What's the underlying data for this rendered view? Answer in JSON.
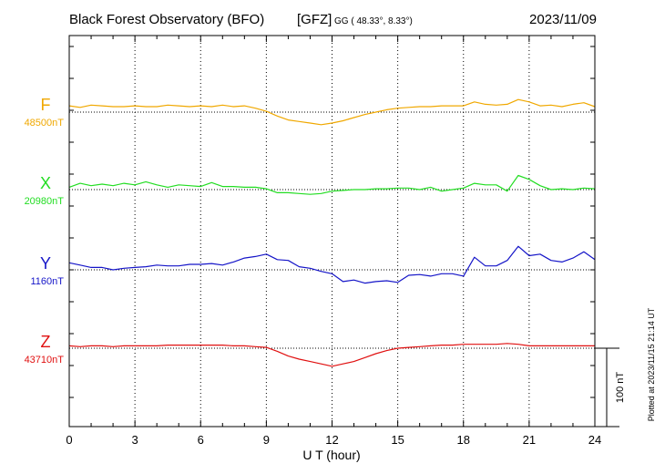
{
  "header": {
    "title": "Black Forest Observatory (BFO)",
    "gfz": "[GFZ]",
    "coords": "GG ( 48.33°,   8.33°)",
    "date": "2023/11/09"
  },
  "footer_note": "Plotted at 2023/11/15 21:14 UT",
  "scale_label": "100 nT",
  "chart_data": {
    "type": "line",
    "title": "Black Forest Observatory (BFO)",
    "xlabel": "U T (hour)",
    "xlim": [
      0,
      24
    ],
    "xticks": [
      0,
      3,
      6,
      9,
      12,
      15,
      18,
      21,
      24
    ],
    "xtick_labels": [
      "0",
      "3",
      "6",
      "9",
      "12",
      "15",
      "18",
      "21",
      "24"
    ],
    "scale_bar_nT": 100,
    "grid": true,
    "series": [
      {
        "name": "F",
        "baseline_label": "48500nT",
        "color": "#f0a800",
        "baseline": 48500,
        "x": [
          0,
          0.5,
          1,
          1.5,
          2,
          2.5,
          3,
          3.5,
          4,
          4.5,
          5,
          5.5,
          6,
          6.5,
          7,
          7.5,
          8,
          8.5,
          9,
          9.5,
          10,
          10.5,
          11,
          11.5,
          12,
          12.5,
          13,
          13.5,
          14,
          14.5,
          15,
          15.5,
          16,
          16.5,
          17,
          17.5,
          18,
          18.5,
          19,
          19.5,
          20,
          20.5,
          21,
          21.5,
          22,
          22.5,
          23,
          23.5,
          24
        ],
        "values": [
          48508,
          48506,
          48509,
          48508,
          48507,
          48507,
          48508,
          48507,
          48507,
          48509,
          48508,
          48507,
          48508,
          48507,
          48509,
          48507,
          48508,
          48505,
          48501,
          48495,
          48490,
          48488,
          48486,
          48484,
          48486,
          48489,
          48493,
          48497,
          48500,
          48503,
          48505,
          48506,
          48507,
          48507,
          48508,
          48508,
          48508,
          48513,
          48510,
          48509,
          48510,
          48516,
          48513,
          48508,
          48509,
          48507,
          48510,
          48512,
          48507
        ]
      },
      {
        "name": "X",
        "baseline_label": "20980nT",
        "color": "#22dd22",
        "baseline": 20980,
        "x": [
          0,
          0.5,
          1,
          1.5,
          2,
          2.5,
          3,
          3.5,
          4,
          4.5,
          5,
          5.5,
          6,
          6.5,
          7,
          7.5,
          8,
          8.5,
          9,
          9.5,
          10,
          10.5,
          11,
          11.5,
          12,
          12.5,
          13,
          13.5,
          14,
          14.5,
          15,
          15.5,
          16,
          16.5,
          17,
          17.5,
          18,
          18.5,
          19,
          19.5,
          20,
          20.5,
          21,
          21.5,
          22,
          22.5,
          23,
          23.5,
          24
        ],
        "values": [
          20983,
          20988,
          20985,
          20987,
          20985,
          20988,
          20986,
          20990,
          20986,
          20983,
          20986,
          20985,
          20984,
          20989,
          20984,
          20984,
          20983,
          20983,
          20981,
          20976,
          20976,
          20975,
          20974,
          20975,
          20978,
          20979,
          20980,
          20980,
          20981,
          20981,
          20982,
          20982,
          20980,
          20983,
          20978,
          20980,
          20982,
          20988,
          20986,
          20986,
          20978,
          20998,
          20993,
          20985,
          20980,
          20981,
          20980,
          20982,
          20981
        ]
      },
      {
        "name": "Y",
        "baseline_label": "1160nT",
        "color": "#1515c8",
        "baseline": 1160,
        "x": [
          0,
          0.5,
          1,
          1.5,
          2,
          2.5,
          3,
          3.5,
          4,
          4.5,
          5,
          5.5,
          6,
          6.5,
          7,
          7.5,
          8,
          8.5,
          9,
          9.5,
          10,
          10.5,
          11,
          11.5,
          12,
          12.5,
          13,
          13.5,
          14,
          14.5,
          15,
          15.5,
          16,
          16.5,
          17,
          17.5,
          18,
          18.5,
          19,
          19.5,
          20,
          20.5,
          21,
          21.5,
          22,
          22.5,
          23,
          23.5,
          24
        ],
        "values": [
          1169,
          1166,
          1163,
          1163,
          1160,
          1162,
          1163,
          1164,
          1166,
          1165,
          1165,
          1167,
          1167,
          1168,
          1166,
          1170,
          1175,
          1177,
          1180,
          1173,
          1172,
          1164,
          1162,
          1158,
          1155,
          1145,
          1147,
          1143,
          1145,
          1146,
          1144,
          1153,
          1154,
          1152,
          1155,
          1155,
          1152,
          1176,
          1165,
          1165,
          1172,
          1190,
          1178,
          1180,
          1172,
          1170,
          1175,
          1183,
          1173
        ]
      },
      {
        "name": "Z",
        "baseline_label": "43710nT",
        "color": "#e01010",
        "baseline": 43710,
        "x": [
          0,
          0.5,
          1,
          1.5,
          2,
          2.5,
          3,
          3.5,
          4,
          4.5,
          5,
          5.5,
          6,
          6.5,
          7,
          7.5,
          8,
          8.5,
          9,
          9.5,
          10,
          10.5,
          11,
          11.5,
          12,
          12.5,
          13,
          13.5,
          14,
          14.5,
          15,
          15.5,
          16,
          16.5,
          17,
          17.5,
          18,
          18.5,
          19,
          19.5,
          20,
          20.5,
          21,
          21.5,
          22,
          22.5,
          23,
          23.5,
          24
        ],
        "values": [
          43713,
          43712,
          43713,
          43713,
          43712,
          43713,
          43713,
          43713,
          43713,
          43714,
          43714,
          43714,
          43714,
          43714,
          43714,
          43713,
          43713,
          43712,
          43711,
          43706,
          43700,
          43696,
          43693,
          43690,
          43687,
          43690,
          43693,
          43698,
          43703,
          43707,
          43710,
          43711,
          43712,
          43713,
          43714,
          43714,
          43715,
          43715,
          43715,
          43715,
          43716,
          43715,
          43713,
          43713,
          43713,
          43713,
          43713,
          43713,
          43713
        ]
      }
    ]
  }
}
